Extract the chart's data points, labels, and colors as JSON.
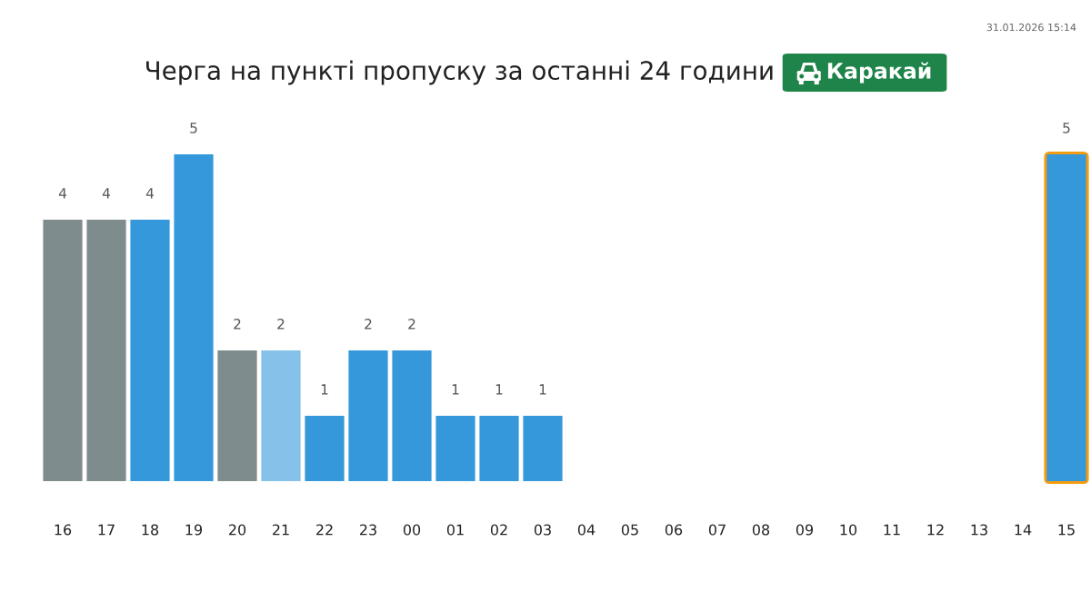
{
  "chart_data": {
    "type": "bar",
    "title": "Черга на пункті пропуску за останні 24 години",
    "subtitle": "Каракай",
    "annotations": [
      "31.01.2026 15:14"
    ],
    "categories": [
      "16",
      "17",
      "18",
      "19",
      "20",
      "21",
      "22",
      "23",
      "00",
      "01",
      "02",
      "03",
      "04",
      "05",
      "06",
      "07",
      "08",
      "09",
      "10",
      "11",
      "12",
      "13",
      "14",
      "15"
    ],
    "values": [
      4,
      4,
      4,
      5,
      2,
      2,
      1,
      2,
      2,
      1,
      1,
      1,
      null,
      null,
      null,
      null,
      null,
      null,
      null,
      null,
      null,
      null,
      null,
      5
    ],
    "colors": [
      "#7f8c8d",
      "#7f8c8d",
      "#3498db",
      "#3498db",
      "#7f8c8d",
      "#85c1e9",
      "#3498db",
      "#3498db",
      "#3498db",
      "#3498db",
      "#3498db",
      "#3498db",
      null,
      null,
      null,
      null,
      null,
      null,
      null,
      null,
      null,
      null,
      null,
      "#3498db"
    ],
    "ylim": [
      0,
      5
    ],
    "data_labels": true,
    "bands": [
      {
        "axis": "x",
        "from": "15",
        "to": "15",
        "color": "#f39c12"
      }
    ]
  }
}
